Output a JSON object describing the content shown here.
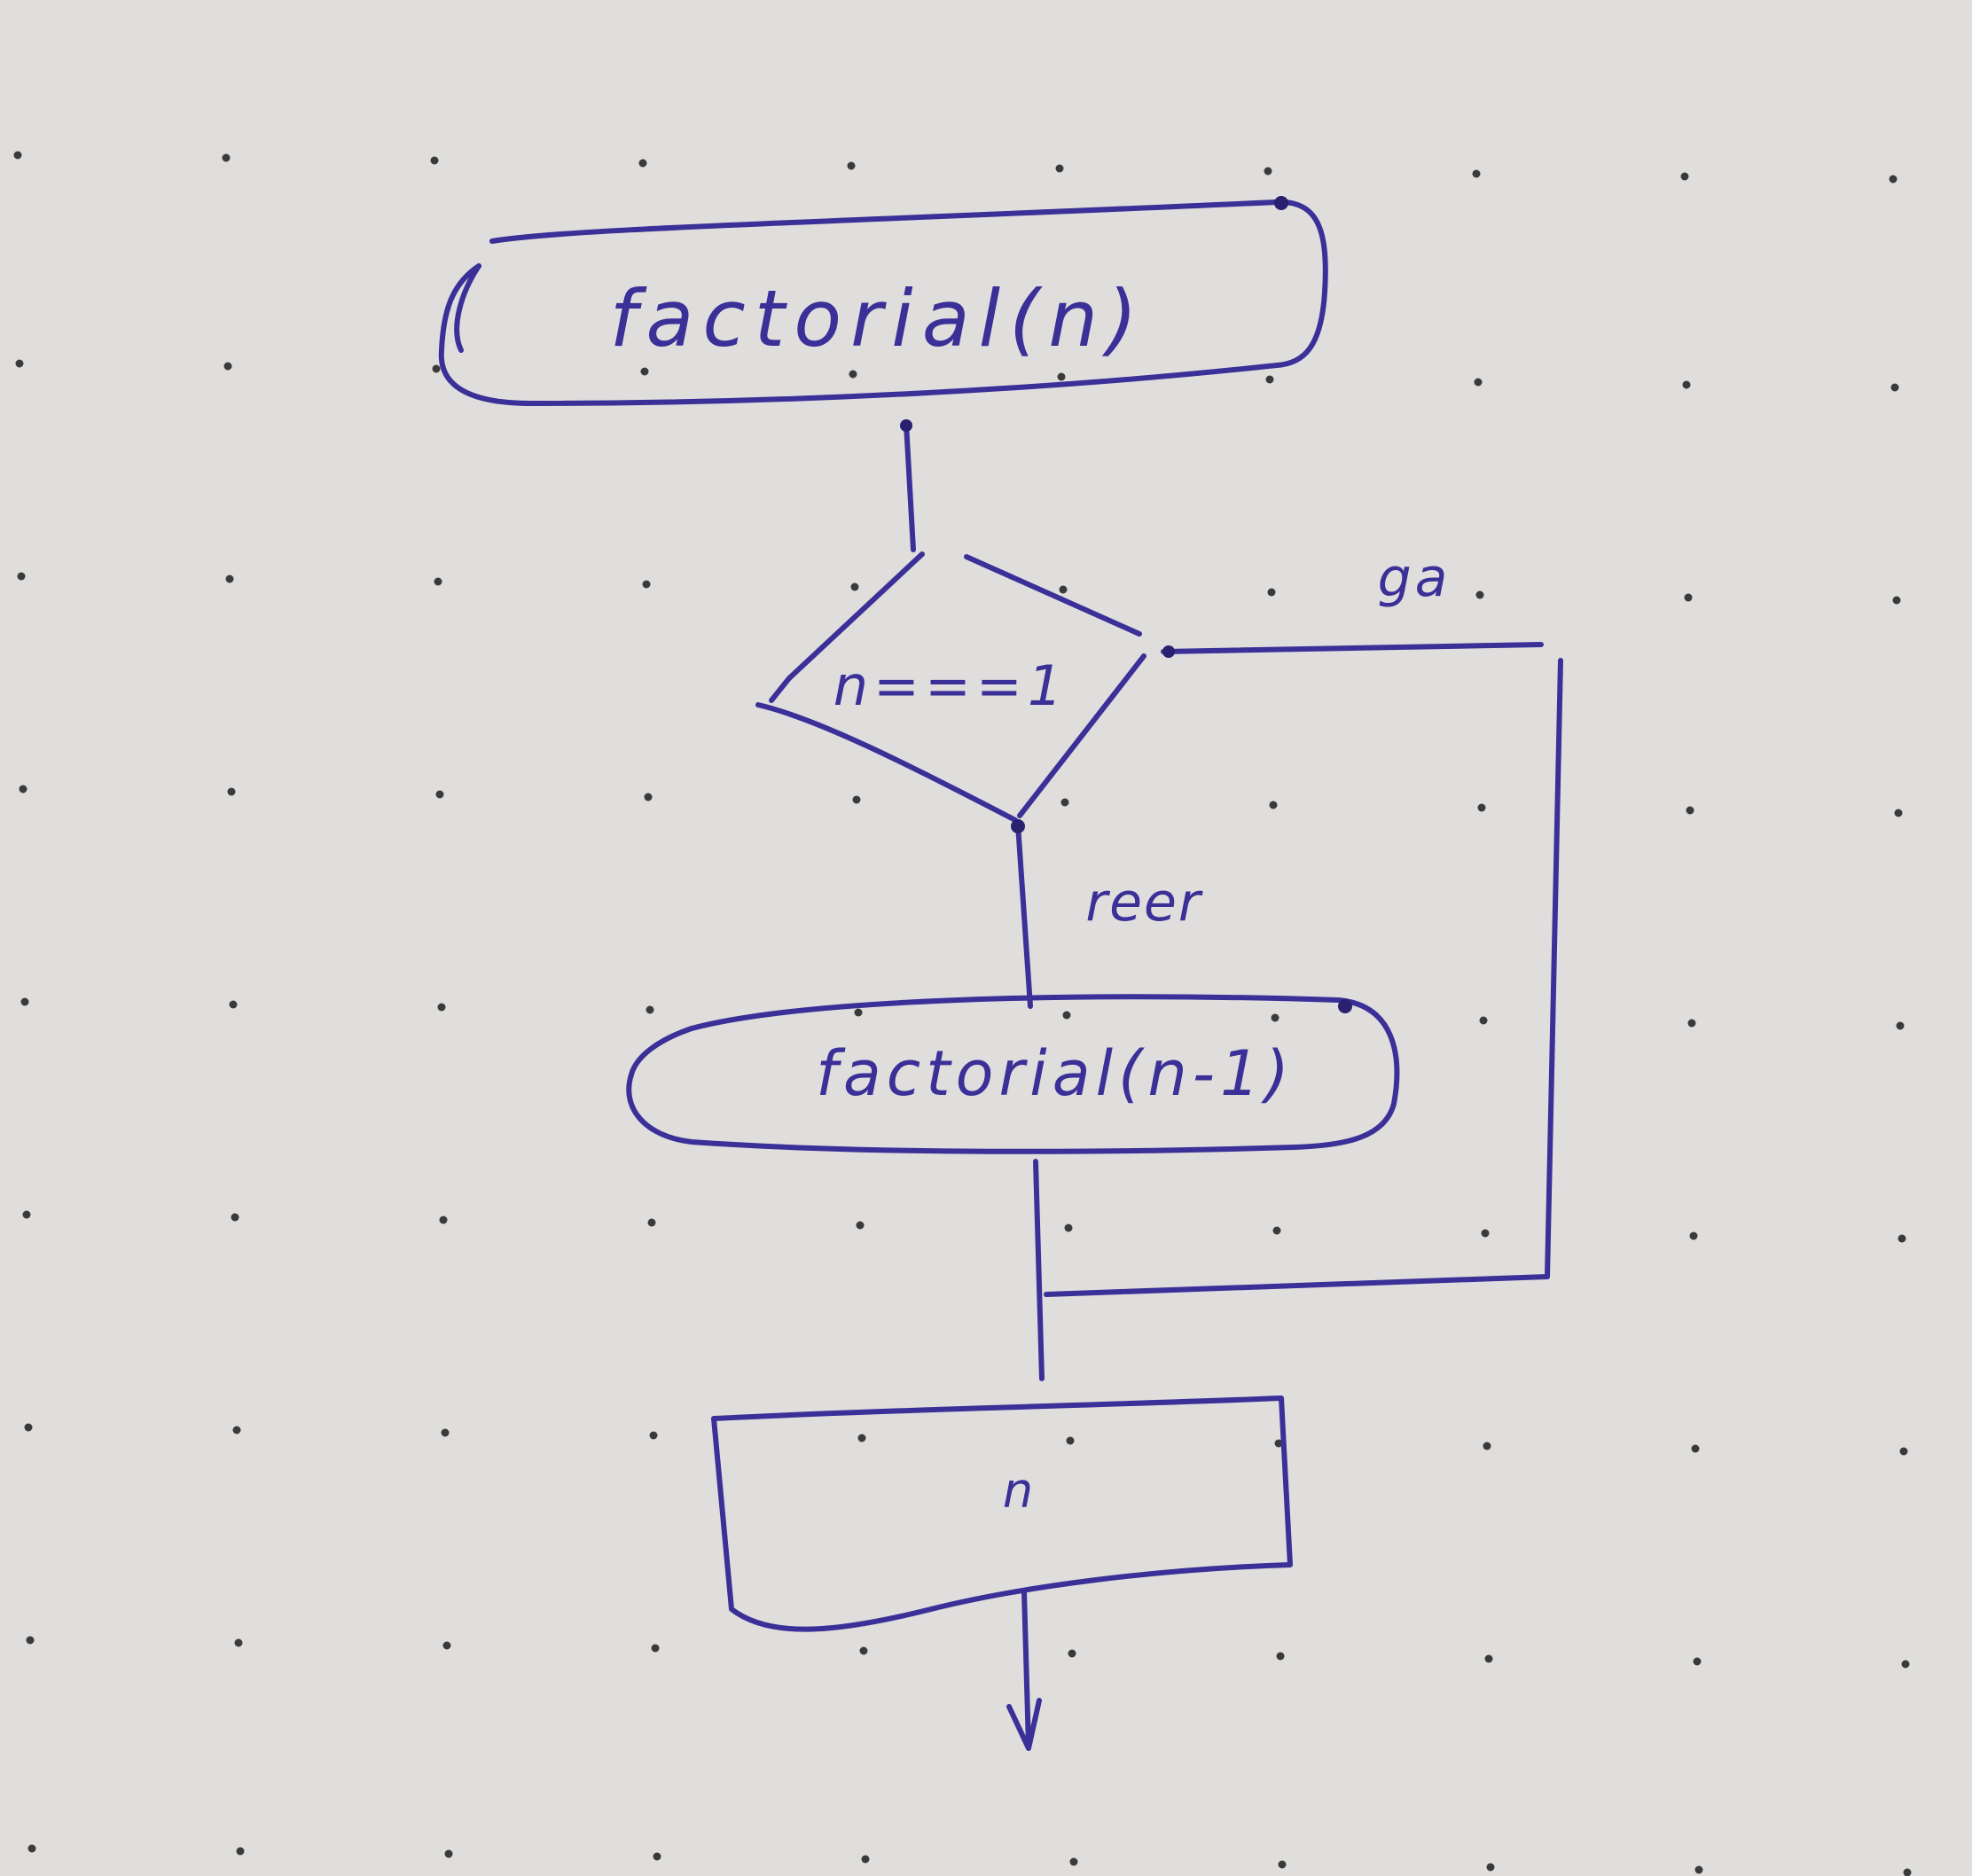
{
  "diagram": {
    "start_label": "factorial(n)",
    "decision_label": "n===1",
    "yes_label": "ga",
    "no_label": "reer",
    "call_label": "factorial(n-1)",
    "output_label": "n"
  },
  "colors": {
    "paper": "#dcdbd9",
    "ink": "#3b2f98",
    "dots": "#3a3a3a"
  }
}
